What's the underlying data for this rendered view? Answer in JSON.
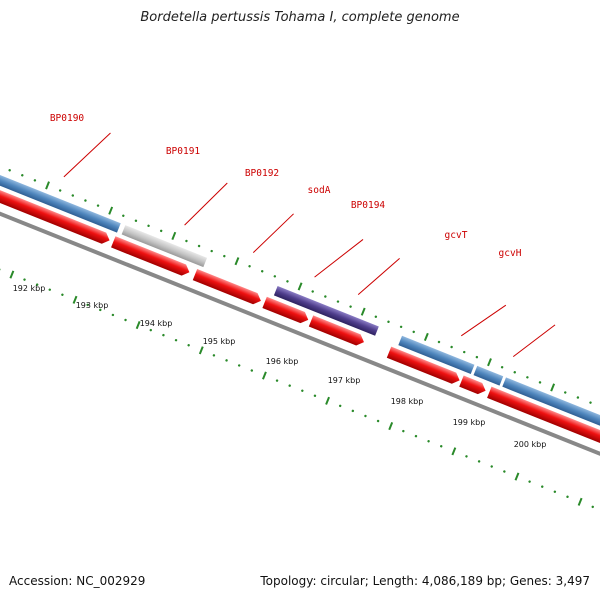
{
  "title": "Bordetella pertussis Tohama I, complete genome",
  "footer": {
    "accession": "Accession: NC_002929",
    "summary": "Topology: circular; Length: 4,086,189 bp; Genes: 3,497"
  },
  "colors": {
    "forward_cds": "#4f86bd",
    "reverse_cds": "#ee1111",
    "hypothetical": "#c6c6c6",
    "highlight": "#4f3e8c",
    "backbone": "#888888",
    "tick": "#2a8a2a",
    "label": "#cc0000"
  },
  "gene_labels": [
    "BP0190",
    "BP0191",
    "BP0192",
    "sodA",
    "BP0194",
    "gcvT",
    "gcvH"
  ],
  "scale_labels": [
    "192 kbp",
    "193 kbp",
    "194 kbp",
    "195 kbp",
    "196 kbp",
    "197 kbp",
    "198 kbp",
    "199 kbp",
    "200 kbp"
  ]
}
